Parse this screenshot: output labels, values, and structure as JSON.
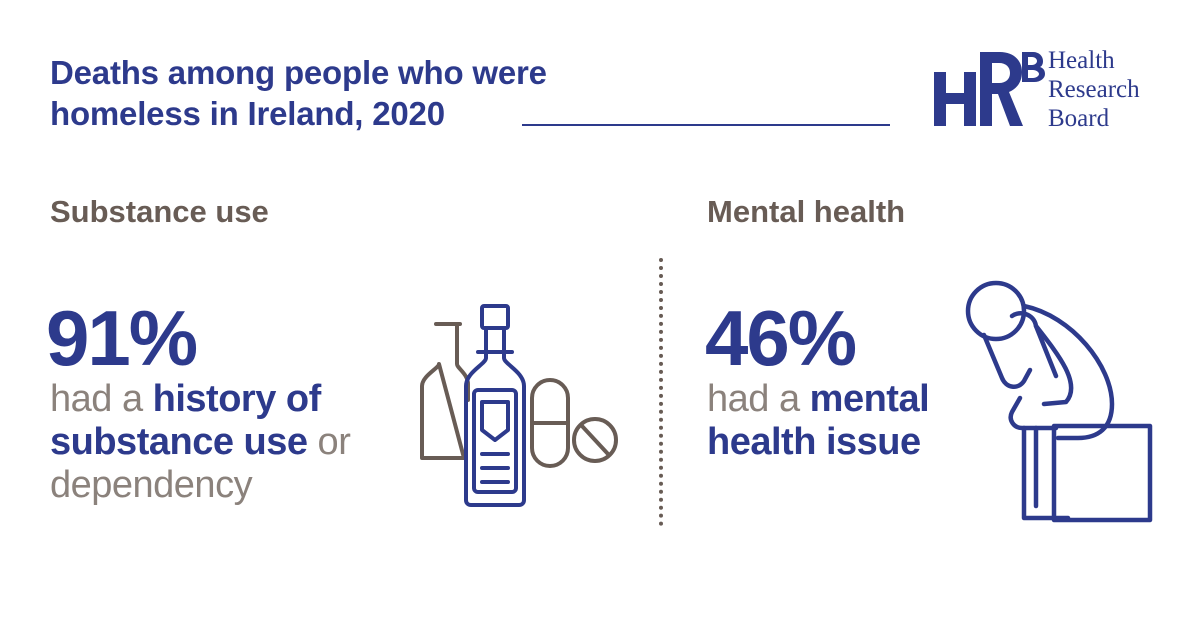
{
  "header": {
    "title_line1": "Deaths among people who were",
    "title_line2": "homeless in Ireland, 2020"
  },
  "logo": {
    "mark_letters": "HRB",
    "line1": "Health",
    "line2": "Research",
    "line3": "Board"
  },
  "substance": {
    "heading": "Substance use",
    "percent": "91%",
    "text_a": "had a ",
    "text_b": "history of substance use",
    "text_c": " or dependency"
  },
  "mental": {
    "heading": "Mental health",
    "percent": "46%",
    "text_a": "had a ",
    "text_b": "mental health issue"
  },
  "colors": {
    "brand_blue": "#2d3a8c",
    "brown": "#685c55",
    "grey": "#8b827c"
  },
  "icons": {
    "left": "bottles-and-pills-icon",
    "right": "distressed-person-icon"
  }
}
